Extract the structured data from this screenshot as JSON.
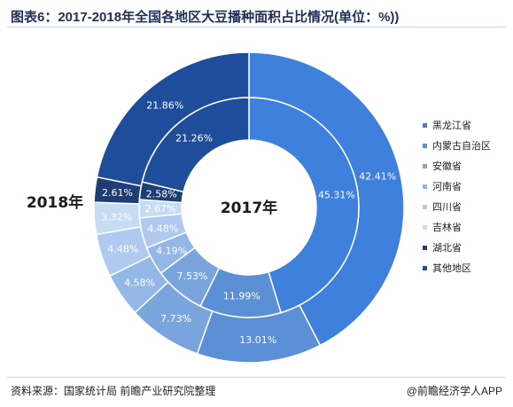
{
  "title": "图表6：2017-2018年全国各地区大豆播种面积占比情况(单位：%))",
  "source": "资料来源：国家统计局 前瞻产业研究院整理",
  "brand": "@前瞻经济学人APP",
  "chart_data": {
    "type": "pie",
    "subtype": "nested-donut",
    "categories": [
      "黑龙江省",
      "内蒙古自治区",
      "安徽省",
      "河南省",
      "四川省",
      "吉林省",
      "湖北省",
      "其他地区"
    ],
    "colors": [
      "#3f80dc",
      "#5b8fd6",
      "#7aa4dc",
      "#93b7e6",
      "#afcaee",
      "#c6dbf4",
      "#1d3d74",
      "#1e4d9b"
    ],
    "series": [
      {
        "name": "2018年",
        "ring": "outer",
        "values": [
          42.41,
          13.01,
          7.73,
          4.58,
          4.48,
          3.32,
          2.61,
          21.86
        ]
      },
      {
        "name": "2017年",
        "ring": "inner",
        "values": [
          45.31,
          11.99,
          7.53,
          4.19,
          4.48,
          2.67,
          2.58,
          21.26
        ]
      }
    ],
    "labels": {
      "outer": [
        "42.41%",
        "13.01%",
        "7.73%",
        "4.58%",
        "4.48%",
        "3.32%",
        "2.61%",
        "21.86%"
      ],
      "inner": [
        "45.31%",
        "11.99%",
        "7.53%",
        "4.19%",
        "4.48%",
        "2.67%",
        "2.58%",
        "21.26%"
      ]
    },
    "legend_position": "right"
  }
}
